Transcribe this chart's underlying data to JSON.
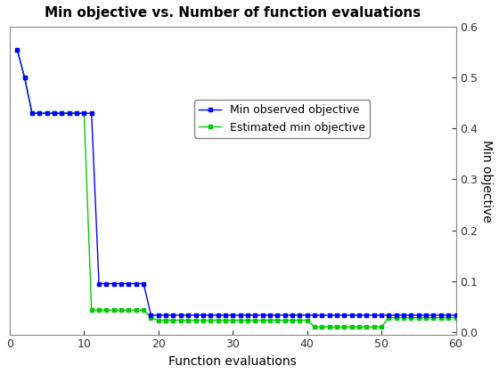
{
  "title": "Min objective vs. Number of function evaluations",
  "xlabel": "Function evaluations",
  "ylabel": "Min objective",
  "xlim": [
    0,
    60
  ],
  "ylim": [
    -0.005,
    0.6
  ],
  "yticks": [
    0,
    0.1,
    0.2,
    0.3,
    0.4,
    0.5,
    0.6
  ],
  "xticks": [
    0,
    10,
    20,
    30,
    40,
    50,
    60
  ],
  "line1_color": "#0000FF",
  "line2_color": "#00CC00",
  "line1_label": "Min observed objective",
  "line2_label": "Estimated min objective",
  "x": [
    1,
    2,
    3,
    4,
    5,
    6,
    7,
    8,
    9,
    10,
    11,
    12,
    13,
    14,
    15,
    16,
    17,
    18,
    19,
    20,
    21,
    22,
    23,
    24,
    25,
    26,
    27,
    28,
    29,
    30,
    31,
    32,
    33,
    34,
    35,
    36,
    37,
    38,
    39,
    40,
    41,
    42,
    43,
    44,
    45,
    46,
    47,
    48,
    49,
    50,
    51,
    52,
    53,
    54,
    55,
    56,
    57,
    58,
    59,
    60
  ],
  "y_observed": [
    0.555,
    0.5,
    0.43,
    0.43,
    0.43,
    0.43,
    0.43,
    0.43,
    0.43,
    0.43,
    0.43,
    0.095,
    0.095,
    0.095,
    0.095,
    0.095,
    0.095,
    0.095,
    0.033,
    0.033,
    0.033,
    0.033,
    0.033,
    0.033,
    0.033,
    0.033,
    0.033,
    0.033,
    0.033,
    0.033,
    0.033,
    0.033,
    0.033,
    0.033,
    0.033,
    0.033,
    0.033,
    0.033,
    0.033,
    0.033,
    0.033,
    0.033,
    0.033,
    0.033,
    0.033,
    0.033,
    0.033,
    0.033,
    0.033,
    0.033,
    0.033,
    0.033,
    0.033,
    0.033,
    0.033,
    0.033,
    0.033,
    0.033,
    0.033,
    0.033
  ],
  "y_estimated": [
    0.555,
    0.5,
    0.43,
    0.43,
    0.43,
    0.43,
    0.43,
    0.43,
    0.43,
    0.43,
    0.043,
    0.043,
    0.043,
    0.043,
    0.043,
    0.043,
    0.043,
    0.043,
    0.028,
    0.023,
    0.023,
    0.023,
    0.023,
    0.023,
    0.023,
    0.023,
    0.023,
    0.023,
    0.023,
    0.023,
    0.023,
    0.023,
    0.023,
    0.023,
    0.023,
    0.023,
    0.023,
    0.023,
    0.023,
    0.023,
    0.01,
    0.01,
    0.01,
    0.01,
    0.01,
    0.01,
    0.01,
    0.01,
    0.01,
    0.01,
    0.028,
    0.028,
    0.028,
    0.028,
    0.028,
    0.028,
    0.028,
    0.028,
    0.028,
    0.028
  ],
  "background_color": "#ffffff",
  "title_fontsize": 11,
  "label_fontsize": 10,
  "tick_fontsize": 9,
  "legend_fontsize": 9
}
